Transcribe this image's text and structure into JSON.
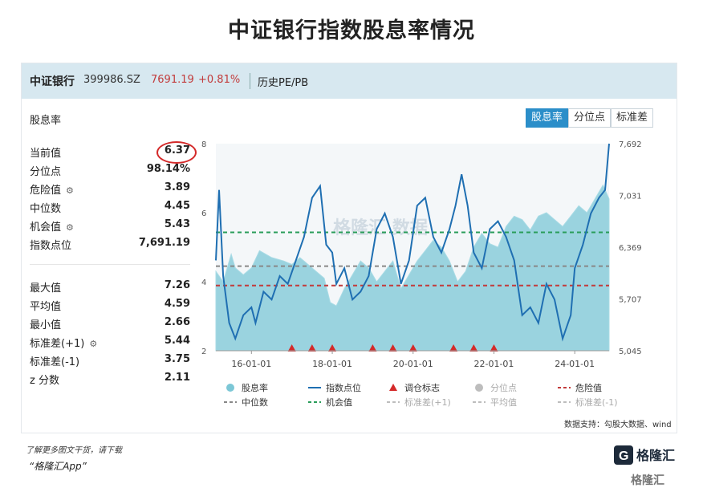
{
  "title": "中证银行指数股息率情况",
  "header": {
    "name": "中证银行",
    "code": "399986.SZ",
    "price": "7691.19",
    "change": "+0.81%",
    "tab": "历史PE/PB"
  },
  "section_title": "股息率",
  "buttons": [
    "股息率",
    "分位点",
    "标准差"
  ],
  "stats_top": [
    {
      "label": "当前值",
      "value": "6.37",
      "icon": ""
    },
    {
      "label": "分位点",
      "value": "98.14%",
      "icon": ""
    },
    {
      "label": "危险值",
      "value": "3.89",
      "icon": "gear-icon"
    },
    {
      "label": "中位数",
      "value": "4.45",
      "icon": ""
    },
    {
      "label": "机会值",
      "value": "5.43",
      "icon": "gear-icon"
    },
    {
      "label": "指数点位",
      "value": "7,691.19",
      "icon": ""
    }
  ],
  "stats_bottom": [
    {
      "label": "最大值",
      "value": "7.26",
      "icon": ""
    },
    {
      "label": "平均值",
      "value": "4.59",
      "icon": ""
    },
    {
      "label": "最小值",
      "value": "2.66",
      "icon": ""
    },
    {
      "label": "标准差(+1)",
      "value": "5.44",
      "icon": "gear-icon"
    },
    {
      "label": "标准差(-1)",
      "value": "3.75",
      "icon": ""
    },
    {
      "label": "z 分数",
      "value": "2.11",
      "icon": ""
    }
  ],
  "source": "数据支持：勾股大数据、wind",
  "footer": {
    "line1": "了解更多图文干货，请下载",
    "line2": "“格隆汇App”",
    "logo": "格隆汇",
    "watermark": "格隆汇"
  },
  "chart_data": {
    "type": "area",
    "x_tick_labels": [
      "16-01-01",
      "18-01-01",
      "20-01-01",
      "22-01-01",
      "24-01-01"
    ],
    "x_ticks_year": [
      2016,
      2018,
      2020,
      2022,
      2024
    ],
    "x_range": [
      2015.12,
      2024.85
    ],
    "y_left": {
      "ticks": [
        "2",
        "4",
        "6",
        "8"
      ],
      "range": [
        2,
        8
      ]
    },
    "y_right": {
      "ticks": [
        "5,045",
        "5,707",
        "6,369",
        "7,031",
        "7,692"
      ],
      "range": [
        5045,
        7692
      ]
    },
    "series": [
      {
        "name": "股息率",
        "kind": "area",
        "color": "#7cc7d6",
        "x": [
          2015.12,
          2015.3,
          2015.5,
          2015.6,
          2015.8,
          2016.0,
          2016.2,
          2016.5,
          2016.8,
          2017.0,
          2017.2,
          2017.4,
          2017.6,
          2017.8,
          2017.95,
          2018.1,
          2018.3,
          2018.5,
          2018.7,
          2018.9,
          2019.1,
          2019.3,
          2019.5,
          2019.7,
          2019.9,
          2020.1,
          2020.3,
          2020.5,
          2020.7,
          2020.9,
          2021.1,
          2021.3,
          2021.5,
          2021.7,
          2021.9,
          2022.1,
          2022.3,
          2022.5,
          2022.7,
          2022.9,
          2023.1,
          2023.3,
          2023.5,
          2023.7,
          2023.9,
          2024.1,
          2024.3,
          2024.5,
          2024.7,
          2024.85
        ],
        "y": [
          4.3,
          4.0,
          4.8,
          4.4,
          4.2,
          4.4,
          4.9,
          4.7,
          4.6,
          4.5,
          4.7,
          4.5,
          4.3,
          4.1,
          3.4,
          3.3,
          3.8,
          4.2,
          4.6,
          4.4,
          4.0,
          4.3,
          4.6,
          3.8,
          4.2,
          4.6,
          4.9,
          5.2,
          5.0,
          4.6,
          4.0,
          4.3,
          5.0,
          5.4,
          5.1,
          5.0,
          5.6,
          5.9,
          5.8,
          5.5,
          5.9,
          6.0,
          5.8,
          5.6,
          5.9,
          6.2,
          6.0,
          6.4,
          6.8,
          6.4
        ]
      },
      {
        "name": "指数点位",
        "kind": "line",
        "color": "#1f6fb2",
        "x": [
          2015.12,
          2015.2,
          2015.3,
          2015.45,
          2015.6,
          2015.8,
          2016.0,
          2016.1,
          2016.3,
          2016.5,
          2016.7,
          2016.9,
          2017.1,
          2017.3,
          2017.5,
          2017.7,
          2017.85,
          2018.0,
          2018.1,
          2018.3,
          2018.5,
          2018.7,
          2018.9,
          2019.1,
          2019.3,
          2019.5,
          2019.7,
          2019.9,
          2020.1,
          2020.3,
          2020.5,
          2020.7,
          2020.9,
          2021.05,
          2021.2,
          2021.35,
          2021.5,
          2021.7,
          2021.9,
          2022.1,
          2022.3,
          2022.5,
          2022.7,
          2022.9,
          2023.1,
          2023.3,
          2023.5,
          2023.7,
          2023.9,
          2024.0,
          2024.2,
          2024.4,
          2024.6,
          2024.75,
          2024.85
        ],
        "y": [
          6200,
          7100,
          6000,
          5400,
          5200,
          5500,
          5600,
          5400,
          5800,
          5700,
          6000,
          5900,
          6200,
          6500,
          7000,
          7150,
          6400,
          6300,
          5900,
          6100,
          5700,
          5800,
          6000,
          6600,
          6800,
          6500,
          5900,
          6200,
          6900,
          7000,
          6500,
          6300,
          6600,
          6900,
          7300,
          6900,
          6300,
          6100,
          6600,
          6700,
          6500,
          6200,
          5500,
          5600,
          5400,
          5900,
          5700,
          5200,
          5500,
          6100,
          6400,
          6800,
          7000,
          7100,
          7692
        ]
      },
      {
        "name": "调仓标志",
        "kind": "marker",
        "color": "#d42a2a",
        "x": [
          2017.0,
          2017.5,
          2018.0,
          2019.0,
          2019.5,
          2020.0,
          2021.0,
          2021.5,
          2022.0
        ]
      },
      {
        "name": "分位点",
        "kind": "legend",
        "color": "#bdbdbd"
      },
      {
        "name": "危险值",
        "kind": "hline",
        "color": "#c23b3b",
        "y": 3.89
      },
      {
        "name": "中位数",
        "kind": "hline",
        "color": "#888888",
        "y": 4.45
      },
      {
        "name": "机会值",
        "kind": "hline",
        "color": "#2a9d5a",
        "y": 5.43
      },
      {
        "name": "标准差(+1)",
        "kind": "legend",
        "color": "#bdbdbd"
      },
      {
        "name": "平均值",
        "kind": "legend",
        "color": "#bdbdbd"
      },
      {
        "name": "标准差(-1)",
        "kind": "legend",
        "color": "#bdbdbd"
      }
    ],
    "watermark": "格隆汇 数据"
  }
}
